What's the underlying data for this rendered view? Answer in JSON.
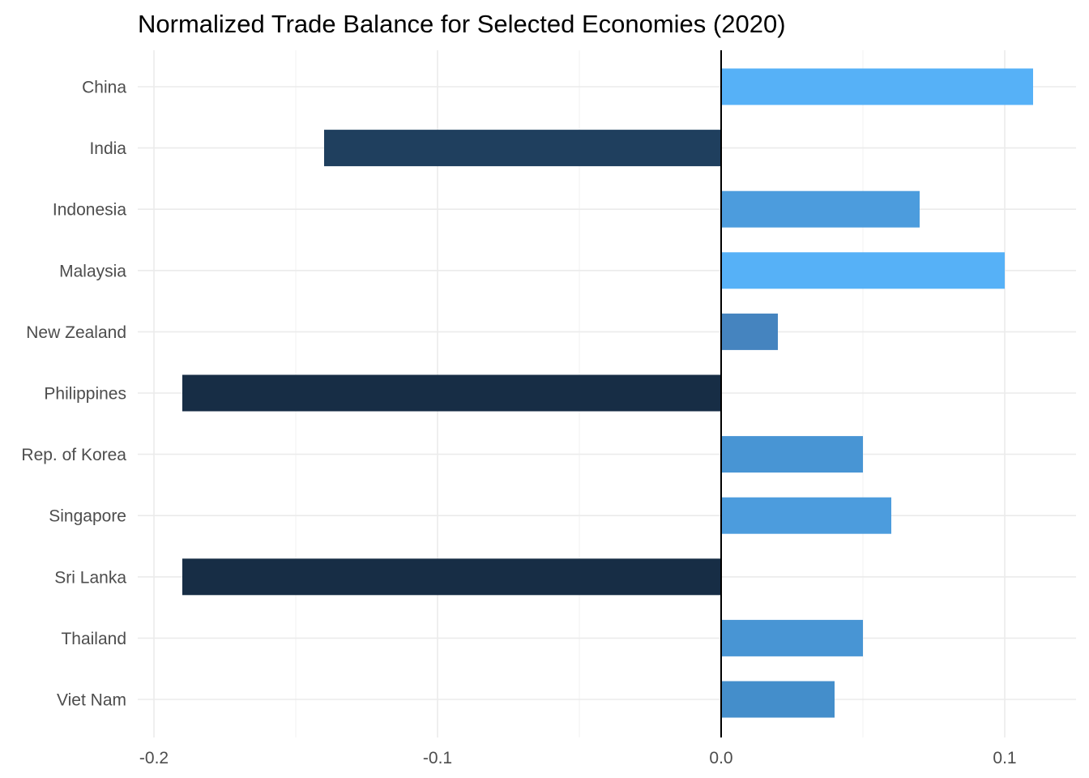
{
  "chart_data": {
    "type": "bar",
    "orientation": "horizontal",
    "title": "Normalized Trade Balance for Selected Economies (2020)",
    "xlabel": "",
    "ylabel": "",
    "categories": [
      "China",
      "India",
      "Indonesia",
      "Malaysia",
      "New Zealand",
      "Philippines",
      "Rep. of Korea",
      "Singapore",
      "Sri Lanka",
      "Thailand",
      "Viet Nam"
    ],
    "values": [
      0.11,
      -0.14,
      0.07,
      0.1,
      0.02,
      -0.19,
      0.05,
      0.06,
      -0.19,
      0.05,
      0.04
    ],
    "colors": [
      "#56b1f7",
      "#1f3f5e",
      "#4c9cdd",
      "#56b1f7",
      "#4584bf",
      "#172d45",
      "#4895d4",
      "#4c9cdd",
      "#172d45",
      "#4895d4",
      "#448ecb"
    ],
    "xlim": [
      -0.2,
      0.125
    ],
    "xticks": [
      -0.2,
      -0.1,
      0.0,
      0.1
    ],
    "xtick_labels": [
      "-0.2",
      "-0.1",
      "0.0",
      "0.1"
    ],
    "grid": true,
    "legend": "none"
  }
}
